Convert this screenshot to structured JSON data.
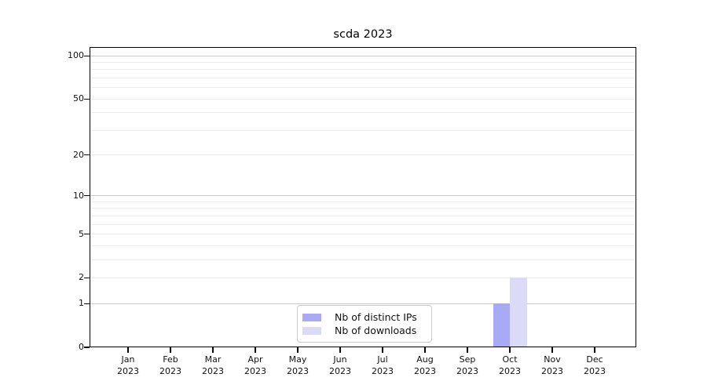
{
  "chart_data": {
    "type": "bar",
    "title": "scda 2023",
    "categories": [
      {
        "month": "Jan",
        "year": "2023"
      },
      {
        "month": "Feb",
        "year": "2023"
      },
      {
        "month": "Mar",
        "year": "2023"
      },
      {
        "month": "Apr",
        "year": "2023"
      },
      {
        "month": "May",
        "year": "2023"
      },
      {
        "month": "Jun",
        "year": "2023"
      },
      {
        "month": "Jul",
        "year": "2023"
      },
      {
        "month": "Aug",
        "year": "2023"
      },
      {
        "month": "Sep",
        "year": "2023"
      },
      {
        "month": "Oct",
        "year": "2023"
      },
      {
        "month": "Nov",
        "year": "2023"
      },
      {
        "month": "Dec",
        "year": "2023"
      }
    ],
    "series": [
      {
        "name": "Nb of distinct IPs",
        "color": "#a9a9f6",
        "values": [
          0,
          0,
          0,
          0,
          0,
          0,
          0,
          0,
          0,
          1,
          0,
          0
        ]
      },
      {
        "name": "Nb of downloads",
        "color": "#dbdbf7",
        "values": [
          0,
          0,
          0,
          0,
          0,
          0,
          0,
          0,
          0,
          2,
          0,
          0
        ]
      }
    ],
    "y_scale": "log1p",
    "ylim": [
      0,
      115
    ],
    "y_ticks": [
      0,
      1,
      2,
      5,
      10,
      20,
      50,
      100
    ],
    "y_major_gridlines": [
      1,
      10,
      100
    ],
    "y_minor_gridlines": [
      2,
      3,
      4,
      5,
      6,
      7,
      8,
      9,
      20,
      30,
      40,
      50,
      60,
      70,
      80,
      90
    ],
    "grid_on": true,
    "legend_position": "bottom-center"
  },
  "style": {
    "major_grid_color": "#c8c8c8",
    "minor_grid_color": "#ebebeb",
    "spine_color": "#000000",
    "text_color": "#111111",
    "background_color": "#ffffff"
  }
}
